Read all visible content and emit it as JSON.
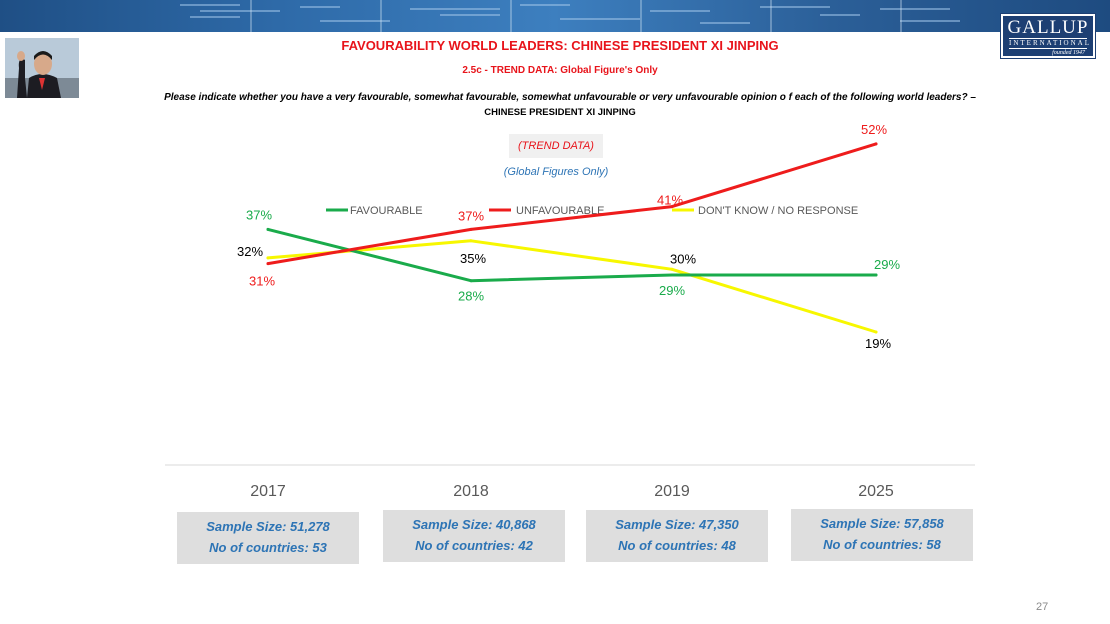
{
  "header": {
    "title": "FAVOURABILITY WORLD LEADERS: CHINESE PRESIDENT XI JINPING",
    "subtitle": "2.5c - TREND DATA: Global Figure's Only",
    "question": "Please indicate whether you have a very favourable, somewhat favourable, somewhat unfavourable or very unfavourable opinion o f each of the following world leaders? –",
    "question_target": "CHINESE PRESIDENT XI JINPING",
    "trend_label": "(TREND DATA)",
    "global_label": "(Global Figures Only)",
    "logo": {
      "main": "GALLUP",
      "sub": "INTERNATIONAL",
      "founded": "founded 1947"
    },
    "photo_icon": "portrait-photo"
  },
  "chart_data": {
    "type": "line",
    "categories": [
      "2017",
      "2018",
      "2019",
      "2025"
    ],
    "series": [
      {
        "name": "FAVOURABLE",
        "color": "#1aab4b",
        "values": [
          37,
          28,
          29,
          29
        ],
        "labels": [
          "37%",
          "28%",
          "29%",
          "29%"
        ]
      },
      {
        "name": "UNFAVOURABLE",
        "color": "#ee1c1c",
        "values": [
          31,
          37,
          41,
          52
        ],
        "labels": [
          "31%",
          "37%",
          "41%",
          "52%"
        ]
      },
      {
        "name": "DON'T KNOW / NO RESPONSE",
        "color": "#f7f700",
        "values": [
          32,
          35,
          30,
          19
        ],
        "labels": [
          "32%",
          "35%",
          "30%",
          "19%"
        ]
      }
    ],
    "label_colors": [
      "#1aab4b",
      "#ee1c1c",
      "#000000"
    ],
    "legend_position": "top",
    "ylim": [
      15,
      55
    ],
    "grid": false
  },
  "samples": [
    {
      "size": "Sample Size: 51,278",
      "countries": "No of countries:  53"
    },
    {
      "size": "Sample Size: 40,868",
      "countries": "No of countries: 42"
    },
    {
      "size": "Sample Size: 47,350",
      "countries": "No of countries: 48"
    },
    {
      "size": "Sample Size: 57,858",
      "countries": "No of countries: 58"
    }
  ],
  "page_number": "27"
}
